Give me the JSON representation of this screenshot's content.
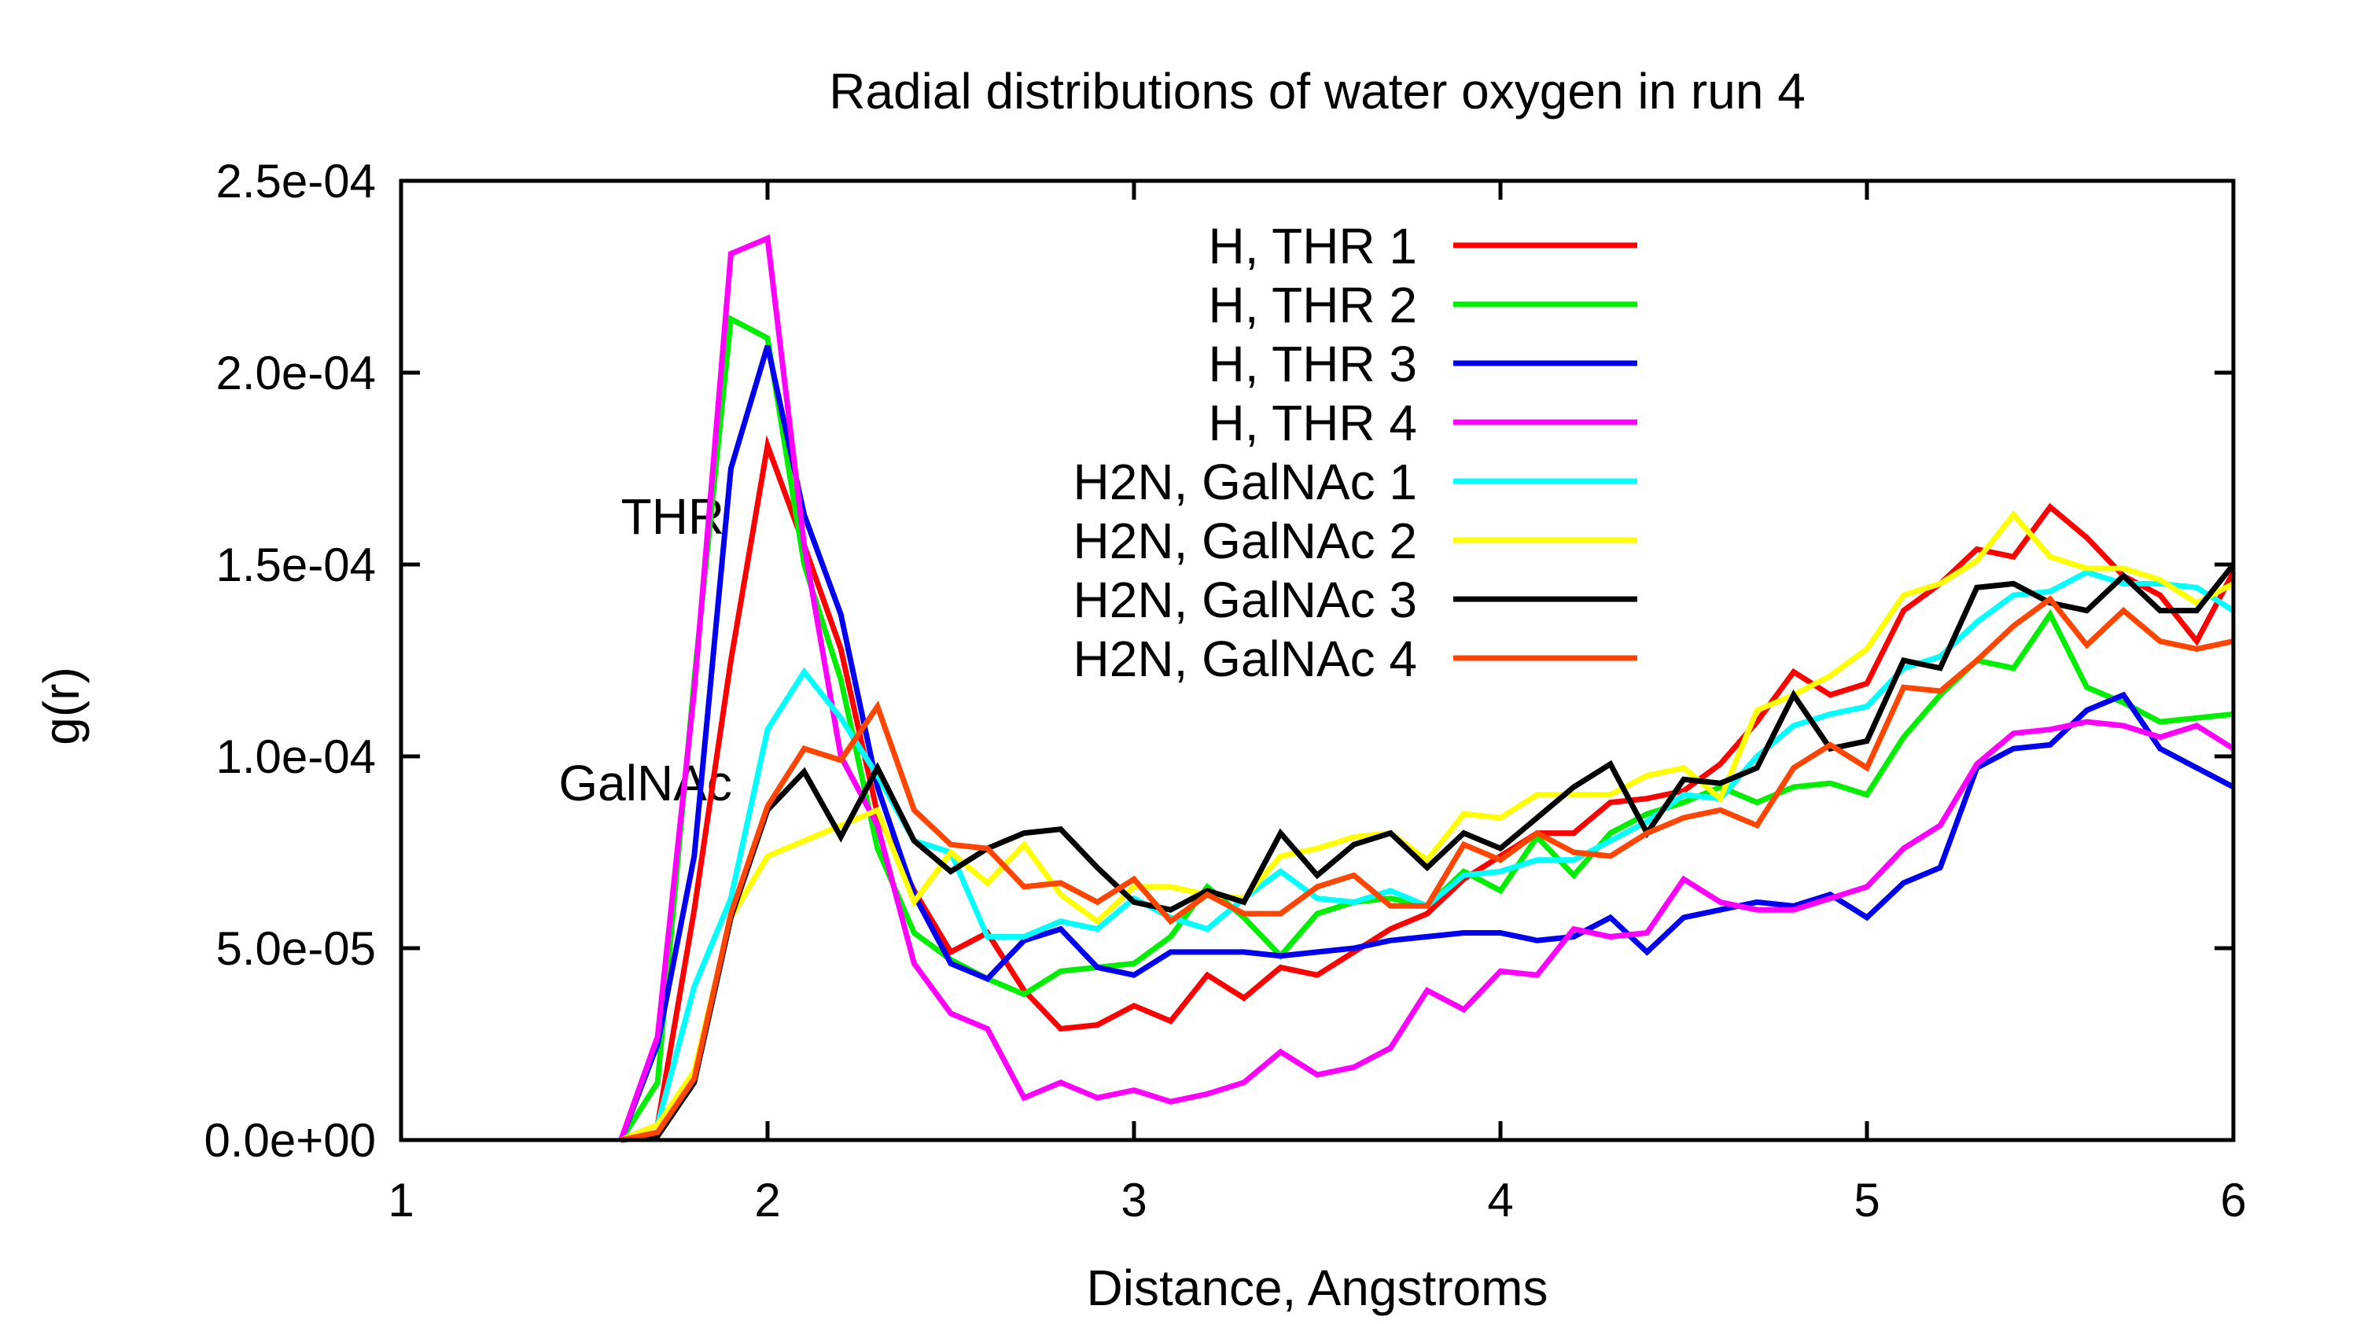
{
  "chart_data": {
    "type": "line",
    "title": "Radial distributions of water oxygen in run 4",
    "xlabel": "Distance, Angstroms",
    "ylabel": "g(r)",
    "xlim": [
      1,
      6
    ],
    "ylim": [
      0,
      0.00025
    ],
    "xticks": [
      {
        "value": 1,
        "label": "1"
      },
      {
        "value": 2,
        "label": "2"
      },
      {
        "value": 3,
        "label": "3"
      },
      {
        "value": 4,
        "label": "4"
      },
      {
        "value": 5,
        "label": "5"
      },
      {
        "value": 6,
        "label": "6"
      }
    ],
    "yticks": [
      {
        "value": 0,
        "label": "0.0e+00"
      },
      {
        "value": 5e-05,
        "label": "5.0e-05"
      },
      {
        "value": 0.0001,
        "label": "1.0e-04"
      },
      {
        "value": 0.00015,
        "label": "1.5e-04"
      },
      {
        "value": 0.0002,
        "label": "2.0e-04"
      },
      {
        "value": 0.00025,
        "label": "2.5e-04"
      }
    ],
    "legend_position": "top-center",
    "grid": false,
    "annotations": [
      {
        "text": "THR",
        "x": 1.6,
        "y": 0.000158
      },
      {
        "text": "GalNAc",
        "x": 1.43,
        "y": 8.85e-05
      }
    ],
    "x": [
      1.6,
      1.7,
      1.8,
      1.9,
      2.0,
      2.1,
      2.2,
      2.3,
      2.4,
      2.5,
      2.6,
      2.7,
      2.8,
      2.9,
      3.0,
      3.1,
      3.2,
      3.3,
      3.4,
      3.5,
      3.6,
      3.7,
      3.8,
      3.9,
      4.0,
      4.1,
      4.2,
      4.3,
      4.4,
      4.5,
      4.6,
      4.7,
      4.8,
      4.9,
      5.0,
      5.1,
      5.2,
      5.3,
      5.4,
      5.5,
      5.6,
      5.7,
      5.8,
      5.9,
      6.0
    ],
    "series": [
      {
        "name": "H, THR 1",
        "color": "#ff0000",
        "values": [
          0,
          4e-06,
          6e-05,
          0.000125,
          0.000181,
          0.000155,
          0.000128,
          8.5e-05,
          6.5e-05,
          4.9e-05,
          5.4e-05,
          3.9e-05,
          2.9e-05,
          3e-05,
          3.5e-05,
          3.1e-05,
          4.3e-05,
          3.7e-05,
          4.5e-05,
          4.3e-05,
          4.9e-05,
          5.5e-05,
          5.9e-05,
          6.8e-05,
          7.4e-05,
          8e-05,
          8e-05,
          8.8e-05,
          8.9e-05,
          9.1e-05,
          9.8e-05,
          0.000109,
          0.000122,
          0.000116,
          0.000119,
          0.000138,
          0.000145,
          0.000154,
          0.000152,
          0.000165,
          0.000157,
          0.000147,
          0.000142,
          0.00013,
          0.000148
        ]
      },
      {
        "name": "H, THR 2",
        "color": "#00ee00",
        "values": [
          0,
          1.5e-05,
          0.00012,
          0.000214,
          0.000209,
          0.00015,
          0.00012,
          7.6e-05,
          5.4e-05,
          4.7e-05,
          4.2e-05,
          3.8e-05,
          4.4e-05,
          4.5e-05,
          4.6e-05,
          5.3e-05,
          6.6e-05,
          5.8e-05,
          4.8e-05,
          5.9e-05,
          6.2e-05,
          6.3e-05,
          6.1e-05,
          7e-05,
          6.5e-05,
          7.9e-05,
          6.9e-05,
          8e-05,
          8.5e-05,
          8.8e-05,
          9.2e-05,
          8.8e-05,
          9.2e-05,
          9.3e-05,
          9e-05,
          0.000105,
          0.000116,
          0.000125,
          0.000123,
          0.000137,
          0.000118,
          0.000114,
          0.000109,
          0.00011,
          0.000111
        ]
      },
      {
        "name": "H, THR 3",
        "color": "#0000ee",
        "values": [
          0,
          2.5e-05,
          7.4e-05,
          0.000175,
          0.000207,
          0.000163,
          0.000137,
          9.2e-05,
          6.4e-05,
          4.6e-05,
          4.2e-05,
          5.2e-05,
          5.5e-05,
          4.5e-05,
          4.3e-05,
          4.9e-05,
          4.9e-05,
          4.9e-05,
          4.8e-05,
          4.9e-05,
          5e-05,
          5.2e-05,
          5.3e-05,
          5.4e-05,
          5.4e-05,
          5.2e-05,
          5.3e-05,
          5.8e-05,
          4.9e-05,
          5.8e-05,
          6e-05,
          6.2e-05,
          6.1e-05,
          6.4e-05,
          5.8e-05,
          6.7e-05,
          7.1e-05,
          9.7e-05,
          0.000102,
          0.000103,
          0.000112,
          0.000116,
          0.000102,
          9.7e-05,
          9.2e-05
        ]
      },
      {
        "name": "H, THR 4",
        "color": "#ff00ff",
        "values": [
          0,
          2.7e-05,
          0.000117,
          0.000231,
          0.000235,
          0.000155,
          0.0001,
          8.2e-05,
          4.6e-05,
          3.3e-05,
          2.9e-05,
          1.1e-05,
          1.5e-05,
          1.1e-05,
          1.3e-05,
          1e-05,
          1.2e-05,
          1.5e-05,
          2.3e-05,
          1.7e-05,
          1.9e-05,
          2.4e-05,
          3.9e-05,
          3.4e-05,
          4.4e-05,
          4.3e-05,
          5.5e-05,
          5.3e-05,
          5.4e-05,
          6.8e-05,
          6.2e-05,
          6e-05,
          6e-05,
          6.3e-05,
          6.6e-05,
          7.6e-05,
          8.2e-05,
          9.8e-05,
          0.000106,
          0.000107,
          0.000109,
          0.000108,
          0.000105,
          0.000108,
          0.000102
        ]
      },
      {
        "name": "H2N, GalNAc 1",
        "color": "#00ffff",
        "values": [
          0,
          4e-06,
          4e-05,
          6.3e-05,
          0.000107,
          0.000122,
          0.00011,
          9.5e-05,
          7.8e-05,
          7.5e-05,
          5.3e-05,
          5.3e-05,
          5.7e-05,
          5.5e-05,
          6.3e-05,
          5.8e-05,
          5.5e-05,
          6.3e-05,
          7e-05,
          6.3e-05,
          6.2e-05,
          6.5e-05,
          6.1e-05,
          6.9e-05,
          7e-05,
          7.3e-05,
          7.3e-05,
          7.8e-05,
          8.3e-05,
          9e-05,
          8.9e-05,
          0.0001,
          0.000108,
          0.000111,
          0.000113,
          0.000123,
          0.000126,
          0.000135,
          0.000142,
          0.000143,
          0.000148,
          0.000145,
          0.000145,
          0.000144,
          0.000138
        ]
      },
      {
        "name": "H2N, GalNAc 2",
        "color": "#ffff00",
        "values": [
          0,
          4e-06,
          1.8e-05,
          5.8e-05,
          7.4e-05,
          7.8e-05,
          8.2e-05,
          8.6e-05,
          6.2e-05,
          7.5e-05,
          6.7e-05,
          7.7e-05,
          6.4e-05,
          5.7e-05,
          6.6e-05,
          6.6e-05,
          6.4e-05,
          6.3e-05,
          7.4e-05,
          7.6e-05,
          7.9e-05,
          8e-05,
          7.3e-05,
          8.5e-05,
          8.4e-05,
          9e-05,
          9e-05,
          9e-05,
          9.5e-05,
          9.7e-05,
          8.9e-05,
          0.000112,
          0.000116,
          0.000121,
          0.000128,
          0.000142,
          0.000145,
          0.000151,
          0.000163,
          0.000152,
          0.000149,
          0.000149,
          0.000146,
          0.00014,
          0.000145
        ]
      },
      {
        "name": "H2N, GalNAc 3",
        "color": "#000000",
        "values": [
          0,
          1e-06,
          1.5e-05,
          5.8e-05,
          8.6e-05,
          9.6e-05,
          7.9e-05,
          9.7e-05,
          7.8e-05,
          7e-05,
          7.6e-05,
          8e-05,
          8.1e-05,
          7.1e-05,
          6.2e-05,
          6e-05,
          6.5e-05,
          6.2e-05,
          8e-05,
          6.9e-05,
          7.7e-05,
          8e-05,
          7.1e-05,
          8e-05,
          7.6e-05,
          8.4e-05,
          9.2e-05,
          9.8e-05,
          8e-05,
          9.4e-05,
          9.3e-05,
          9.7e-05,
          0.000116,
          0.000102,
          0.000104,
          0.000125,
          0.000123,
          0.000144,
          0.000145,
          0.00014,
          0.000138,
          0.000147,
          0.000138,
          0.000138,
          0.00015
        ]
      },
      {
        "name": "H2N, GalNAc 4",
        "color": "#ff4500",
        "values": [
          0,
          2e-06,
          1.6e-05,
          5.9e-05,
          8.7e-05,
          0.000102,
          9.9e-05,
          0.000113,
          8.6e-05,
          7.7e-05,
          7.6e-05,
          6.6e-05,
          6.7e-05,
          6.2e-05,
          6.8e-05,
          5.7e-05,
          6.4e-05,
          5.9e-05,
          5.9e-05,
          6.6e-05,
          6.9e-05,
          6.1e-05,
          6.1e-05,
          7.7e-05,
          7.3e-05,
          8e-05,
          7.5e-05,
          7.4e-05,
          8e-05,
          8.4e-05,
          8.6e-05,
          8.2e-05,
          9.7e-05,
          0.000103,
          9.7e-05,
          0.000118,
          0.000117,
          0.000125,
          0.000134,
          0.000141,
          0.000129,
          0.000138,
          0.00013,
          0.000128,
          0.00013
        ]
      }
    ]
  }
}
